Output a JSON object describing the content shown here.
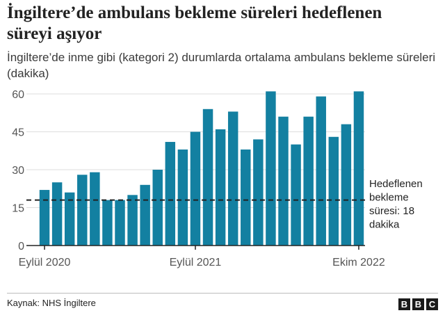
{
  "title": "İngiltere’de ambulans bekleme süreleri hedeflenen süreyi aşıyor",
  "subtitle": "İngiltere’de inme gibi (kategori 2) durumlarda ortalama ambulans bekleme süreleri (dakika)",
  "source": "Kaynak: NHS İngiltere",
  "logo": [
    "B",
    "B",
    "C"
  ],
  "colors": {
    "bar": "#1380a1",
    "axis": "#222222",
    "grid": "#dddddd",
    "target_line": "#222222"
  },
  "chart_data": {
    "type": "bar",
    "x_tick_labels": [
      "Eylül 2020",
      "Eylül 2021",
      "Ekim 2022"
    ],
    "x_tick_indices": [
      0,
      12,
      25
    ],
    "values": [
      22,
      25,
      21,
      28,
      29,
      18,
      18,
      20,
      24,
      30,
      41,
      38,
      45,
      54,
      46,
      53,
      38,
      42,
      61,
      51,
      40,
      51,
      59,
      43,
      48,
      61
    ],
    "ylim": [
      0,
      60
    ],
    "yticks": [
      0,
      15,
      30,
      45,
      60
    ],
    "grid": true,
    "reference_line": {
      "value": 18,
      "style": "dashed",
      "label_lines": [
        "Hedeflenen",
        "bekleme",
        "süresi: 18",
        "dakika"
      ]
    }
  }
}
